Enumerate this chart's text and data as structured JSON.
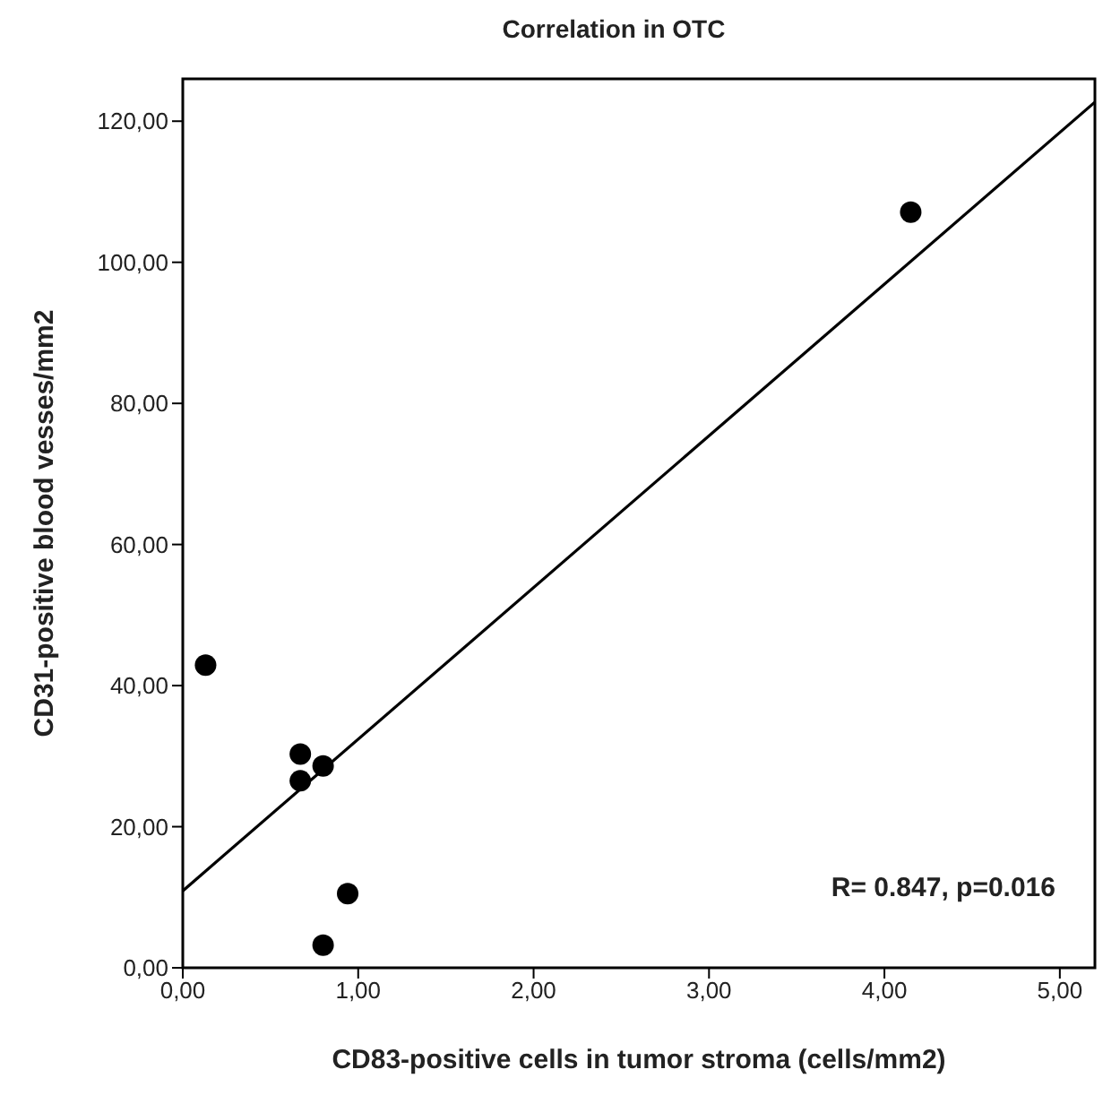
{
  "chart_data": {
    "type": "scatter",
    "title": "Correlation in OTC",
    "xlabel": "CD83-positive cells in tumor stroma (cells/mm2)",
    "ylabel": "CD31-positive blood vesses/mm2",
    "xlim": [
      0,
      5.2
    ],
    "ylim": [
      0,
      126
    ],
    "xticks": [
      {
        "value": 0,
        "label": "0,00"
      },
      {
        "value": 1,
        "label": "1,00"
      },
      {
        "value": 2,
        "label": "2,00"
      },
      {
        "value": 3,
        "label": "3,00"
      },
      {
        "value": 4,
        "label": "4,00"
      },
      {
        "value": 5,
        "label": "5,00"
      }
    ],
    "yticks": [
      {
        "value": 0,
        "label": "0,00"
      },
      {
        "value": 20,
        "label": "20,00"
      },
      {
        "value": 40,
        "label": "40,00"
      },
      {
        "value": 60,
        "label": "60,00"
      },
      {
        "value": 80,
        "label": "80,00"
      },
      {
        "value": 100,
        "label": "100,00"
      },
      {
        "value": 120,
        "label": "120,00"
      }
    ],
    "grid": false,
    "legend": false,
    "marker": "circle",
    "annotations": [
      "R= 0.847, p=0.016"
    ],
    "series": [
      {
        "type": "scatter",
        "color": "#000000",
        "x": [
          0.13,
          0.67,
          0.67,
          0.8,
          0.94,
          0.8,
          4.15
        ],
        "values": [
          42.9,
          30.3,
          26.5,
          28.6,
          10.5,
          3.2,
          107.1
        ]
      },
      {
        "type": "line",
        "color": "#000000",
        "x": [
          0,
          5.2
        ],
        "values": [
          10.9,
          122.7
        ],
        "line_style": "solid",
        "marker": "none"
      }
    ]
  }
}
